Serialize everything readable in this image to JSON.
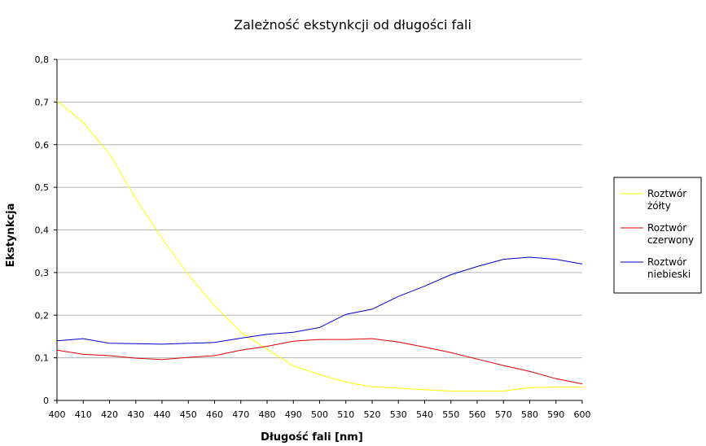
{
  "chart_data": {
    "type": "line",
    "title": "Zależność ekstynkcji od długości fali",
    "xlabel": "Długość fali [nm]",
    "ylabel": "Ekstynkcja",
    "x": [
      400,
      410,
      420,
      430,
      440,
      450,
      460,
      470,
      480,
      490,
      500,
      510,
      520,
      530,
      540,
      550,
      560,
      570,
      580,
      590,
      600
    ],
    "xlim": [
      400,
      600
    ],
    "ylim": [
      0,
      0.8
    ],
    "y_ticks": [
      "0",
      "0,1",
      "0,2",
      "0,3",
      "0,4",
      "0,5",
      "0,6",
      "0,7",
      "0,8"
    ],
    "x_ticks": [
      "400",
      "410",
      "420",
      "430",
      "440",
      "450",
      "460",
      "470",
      "480",
      "490",
      "500",
      "510",
      "520",
      "530",
      "540",
      "550",
      "560",
      "570",
      "580",
      "590",
      "600"
    ],
    "grid": true,
    "legend_position": "right",
    "series": [
      {
        "name_line1": "Roztwór",
        "name_line2": "żółty",
        "color": "#ffff00",
        "values": [
          0.703,
          0.652,
          0.578,
          0.474,
          0.38,
          0.295,
          0.222,
          0.16,
          0.12,
          0.081,
          0.061,
          0.043,
          0.032,
          0.029,
          0.025,
          0.022,
          0.022,
          0.022,
          0.03,
          0.031,
          0.031
        ]
      },
      {
        "name_line1": "Roztwór",
        "name_line2": "czerwony",
        "color": "#e00000",
        "values": [
          0.118,
          0.108,
          0.105,
          0.099,
          0.096,
          0.101,
          0.105,
          0.118,
          0.127,
          0.139,
          0.143,
          0.143,
          0.145,
          0.137,
          0.125,
          0.112,
          0.097,
          0.082,
          0.068,
          0.051,
          0.039
        ]
      },
      {
        "name_line1": "Roztwór",
        "name_line2": "niebieski",
        "color": "#0000cc",
        "values": [
          0.14,
          0.145,
          0.134,
          0.133,
          0.132,
          0.134,
          0.136,
          0.146,
          0.155,
          0.16,
          0.171,
          0.202,
          0.214,
          0.244,
          0.268,
          0.295,
          0.314,
          0.331,
          0.336,
          0.331,
          0.32
        ]
      }
    ]
  }
}
